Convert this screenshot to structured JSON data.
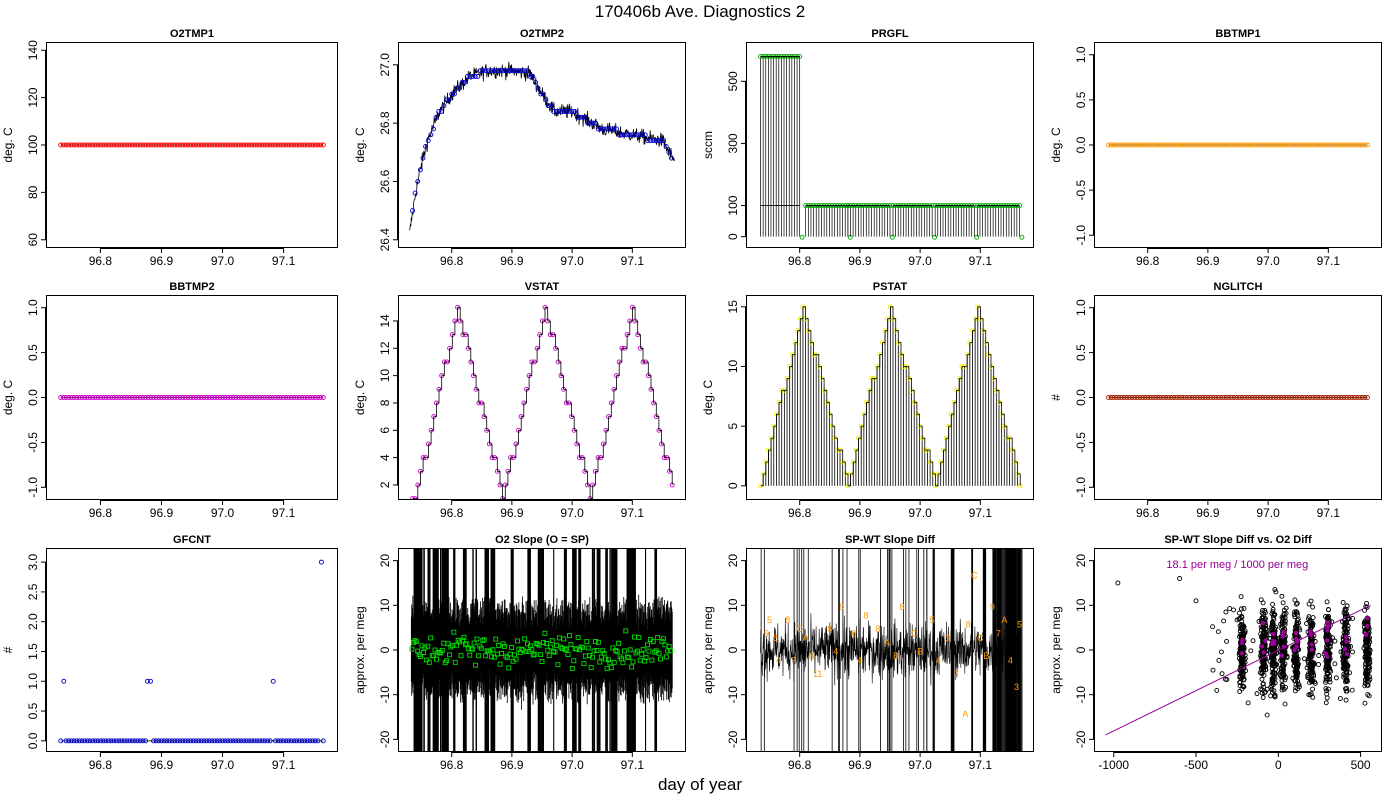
{
  "figure": {
    "title": "170406b   Ave. Diagnostics 2",
    "xlabel": "day of year"
  },
  "colors": {
    "red": "#ff0000",
    "blue": "#0000cc",
    "green": "#00aa00",
    "orange": "#ff9900",
    "purple": "#cc00cc",
    "yellow": "#eeee00",
    "brown": "#aa2200",
    "brightgreen": "#00dd00",
    "magenta": "#990099",
    "black": "#000000"
  },
  "chart_data": [
    {
      "name": "O2TMP1",
      "type": "scatter",
      "title": "O2TMP1",
      "ylabel": "deg. C",
      "xlim": [
        96.73,
        97.17
      ],
      "ylim": [
        60,
        140
      ],
      "xticks": [
        96.8,
        96.9,
        97.0,
        97.1
      ],
      "xtick_labels": [
        "96.8",
        "96.9",
        "97.0",
        "97.1"
      ],
      "yticks": [
        60,
        80,
        100,
        120,
        140
      ],
      "ytick_labels": [
        "60",
        "80",
        "100",
        "120",
        "140"
      ],
      "point_color": "red",
      "points": "constant",
      "value": 100
    },
    {
      "name": "O2TMP2",
      "type": "line",
      "title": "O2TMP2",
      "ylabel": "deg. C",
      "xlim": [
        96.73,
        97.17
      ],
      "ylim": [
        26.4,
        27.05
      ],
      "xticks": [
        96.8,
        96.9,
        97.0,
        97.1
      ],
      "xtick_labels": [
        "96.8",
        "96.9",
        "97.0",
        "97.1"
      ],
      "yticks": [
        26.4,
        26.6,
        26.8,
        27.0
      ],
      "ytick_labels": [
        "26.4",
        "26.6",
        "26.8",
        "27.0"
      ],
      "point_color": "blue",
      "curve_x": [
        96.73,
        96.74,
        96.75,
        96.76,
        96.78,
        96.8,
        96.83,
        96.86,
        96.9,
        96.93,
        96.95,
        96.97,
        97.0,
        97.05,
        97.1,
        97.15,
        97.17
      ],
      "curve_y": [
        26.42,
        26.56,
        26.66,
        26.74,
        26.84,
        26.9,
        26.96,
        26.98,
        26.98,
        26.97,
        26.9,
        26.84,
        26.84,
        26.78,
        26.76,
        26.74,
        26.67
      ]
    },
    {
      "name": "PRGFL",
      "type": "step",
      "title": "PRGFL",
      "ylabel": "sccm",
      "xlim": [
        96.73,
        97.17
      ],
      "ylim": [
        -10,
        600
      ],
      "xticks": [
        96.8,
        96.9,
        97.0,
        97.1
      ],
      "xtick_labels": [
        "96.8",
        "96.9",
        "97.0",
        "97.1"
      ],
      "yticks": [
        0,
        100,
        300,
        500
      ],
      "ytick_labels": [
        "0",
        "100",
        "300",
        "500"
      ],
      "point_color": "green",
      "segments": [
        {
          "x0": 96.735,
          "x1": 96.8,
          "value": 580
        },
        {
          "x0": 96.81,
          "x1": 96.88,
          "value": 100
        },
        {
          "x0": 96.88,
          "x1": 96.95,
          "value": 100
        },
        {
          "x0": 96.955,
          "x1": 97.02,
          "value": 100
        },
        {
          "x0": 97.025,
          "x1": 97.09,
          "value": 100
        },
        {
          "x0": 97.095,
          "x1": 97.165,
          "value": 100
        }
      ]
    },
    {
      "name": "BBTMP1",
      "type": "scatter",
      "title": "BBTMP1",
      "ylabel": "deg. C",
      "xlim": [
        96.73,
        97.17
      ],
      "ylim": [
        -1.05,
        1.05
      ],
      "xticks": [
        96.8,
        96.9,
        97.0,
        97.1
      ],
      "xtick_labels": [
        "96.8",
        "96.9",
        "97.0",
        "97.1"
      ],
      "yticks": [
        -1.0,
        -0.5,
        0.0,
        0.5,
        1.0
      ],
      "ytick_labels": [
        "-1.0",
        "-0.5",
        "0.0",
        "0.5",
        "1.0"
      ],
      "point_color": "orange",
      "points": "constant",
      "value": 0
    },
    {
      "name": "BBTMP2",
      "type": "scatter",
      "title": "BBTMP2",
      "ylabel": "deg. C",
      "xlim": [
        96.73,
        97.17
      ],
      "ylim": [
        -1.05,
        1.05
      ],
      "xticks": [
        96.8,
        96.9,
        97.0,
        97.1
      ],
      "xtick_labels": [
        "96.8",
        "96.9",
        "97.0",
        "97.1"
      ],
      "yticks": [
        -1.0,
        -0.5,
        0.0,
        0.5,
        1.0
      ],
      "ytick_labels": [
        "-1.0",
        "-0.5",
        "0.0",
        "0.5",
        "1.0"
      ],
      "point_color": "purple",
      "points": "constant",
      "value": 0
    },
    {
      "name": "VSTAT",
      "type": "step",
      "title": "VSTAT",
      "ylabel": "deg. C",
      "xlim": [
        96.73,
        97.17
      ],
      "ylim": [
        1.5,
        15.3
      ],
      "xticks": [
        96.8,
        96.9,
        97.0,
        97.1
      ],
      "xtick_labels": [
        "96.8",
        "96.9",
        "97.0",
        "97.1"
      ],
      "yticks": [
        2,
        4,
        6,
        8,
        10,
        12,
        14
      ],
      "ytick_labels": [
        "2",
        "4",
        "6",
        "8",
        "10",
        "12",
        "14"
      ],
      "point_color": "purple",
      "pattern": "triangle",
      "min": 1,
      "max": 15,
      "peaks": [
        96.81,
        96.955,
        97.1
      ],
      "troughs": [
        96.74,
        96.885,
        97.03,
        97.17
      ]
    },
    {
      "name": "PSTAT",
      "type": "bars",
      "title": "PSTAT",
      "ylabel": "deg. C",
      "xlim": [
        96.73,
        97.17
      ],
      "ylim": [
        -0.5,
        15.3
      ],
      "xticks": [
        96.8,
        96.9,
        97.0,
        97.1
      ],
      "xtick_labels": [
        "96.8",
        "96.9",
        "97.0",
        "97.1"
      ],
      "yticks": [
        0,
        5,
        10,
        15
      ],
      "ytick_labels": [
        "0",
        "5",
        "10",
        "15"
      ],
      "point_color": "yellow",
      "pattern": "triangle",
      "min": 0,
      "max": 15,
      "peaks": [
        96.805,
        96.95,
        97.095
      ],
      "troughs": [
        96.735,
        96.88,
        97.025,
        97.165
      ]
    },
    {
      "name": "NGLITCH",
      "type": "scatter",
      "title": "NGLITCH",
      "ylabel": "#",
      "xlim": [
        96.73,
        97.17
      ],
      "ylim": [
        -1.05,
        1.05
      ],
      "xticks": [
        96.8,
        96.9,
        97.0,
        97.1
      ],
      "xtick_labels": [
        "96.8",
        "96.9",
        "97.0",
        "97.1"
      ],
      "yticks": [
        -1.0,
        -0.5,
        0.0,
        0.5,
        1.0
      ],
      "ytick_labels": [
        "-1.0",
        "-0.5",
        "0.0",
        "0.5",
        "1.0"
      ],
      "point_color": "brown",
      "points": "constant",
      "value": 0
    },
    {
      "name": "GFCNT",
      "type": "scatter",
      "title": "GFCNT",
      "ylabel": "#",
      "xlim": [
        96.73,
        97.17
      ],
      "ylim": [
        -0.05,
        3.1
      ],
      "xticks": [
        96.8,
        96.9,
        97.0,
        97.1
      ],
      "xtick_labels": [
        "96.8",
        "96.9",
        "97.0",
        "97.1"
      ],
      "yticks": [
        0.0,
        0.5,
        1.0,
        1.5,
        2.0,
        2.5,
        3.0
      ],
      "ytick_labels": [
        "0.0",
        "0.5",
        "1.0",
        "1.5",
        "2.0",
        "2.5",
        "3.0"
      ],
      "point_color": "blue",
      "points": "constant",
      "value": 0,
      "outliers": [
        {
          "x": 96.74,
          "y": 1
        },
        {
          "x": 96.877,
          "y": 1
        },
        {
          "x": 96.882,
          "y": 1
        },
        {
          "x": 97.083,
          "y": 1
        },
        {
          "x": 97.162,
          "y": 3
        }
      ]
    },
    {
      "name": "O2Slope",
      "type": "scatter",
      "title": "O2 Slope (O = SP)",
      "ylabel": "approx. per meg",
      "xlim": [
        96.73,
        97.17
      ],
      "ylim": [
        -21,
        21
      ],
      "xticks": [
        96.8,
        96.9,
        97.0,
        97.1
      ],
      "xtick_labels": [
        "96.8",
        "96.9",
        "97.0",
        "97.1"
      ],
      "yticks": [
        -20,
        -10,
        0,
        10,
        20
      ],
      "ytick_labels": [
        "-20",
        "-10",
        "0",
        "10",
        "20"
      ],
      "point_color": "brightgreen",
      "noise": "high"
    },
    {
      "name": "SPWTDiff",
      "type": "line",
      "title": "SP-WT Slope Diff",
      "ylabel": "approx. per meg",
      "xlim": [
        96.73,
        97.17
      ],
      "ylim": [
        -21,
        21
      ],
      "xticks": [
        96.8,
        96.9,
        97.0,
        97.1
      ],
      "xtick_labels": [
        "96.8",
        "96.9",
        "97.0",
        "97.1"
      ],
      "yticks": [
        -20,
        -10,
        0,
        10,
        20
      ],
      "ytick_labels": [
        "-20",
        "-10",
        "0",
        "10",
        "20"
      ],
      "point_color": "orange",
      "annotations": [
        {
          "x": 96.745,
          "y": 3,
          "t": "9"
        },
        {
          "x": 96.75,
          "y": 6,
          "t": "5"
        },
        {
          "x": 96.76,
          "y": 2,
          "t": "8"
        },
        {
          "x": 96.765,
          "y": -3,
          "t": "4"
        },
        {
          "x": 96.78,
          "y": 6,
          "t": "8"
        },
        {
          "x": 96.79,
          "y": -3,
          "t": "7"
        },
        {
          "x": 96.8,
          "y": 4,
          "t": "C"
        },
        {
          "x": 96.81,
          "y": 2,
          "t": "A"
        },
        {
          "x": 96.82,
          "y": -2,
          "t": "B"
        },
        {
          "x": 96.83,
          "y": -6,
          "t": "11"
        },
        {
          "x": 96.85,
          "y": 4,
          "t": "8"
        },
        {
          "x": 96.86,
          "y": -1,
          "t": "4"
        },
        {
          "x": 96.87,
          "y": 9,
          "t": "9"
        },
        {
          "x": 96.89,
          "y": 3,
          "t": "6"
        },
        {
          "x": 96.9,
          "y": -3,
          "t": "4"
        },
        {
          "x": 96.91,
          "y": 7,
          "t": "8"
        },
        {
          "x": 96.93,
          "y": 4,
          "t": "8"
        },
        {
          "x": 96.945,
          "y": 1,
          "t": "A"
        },
        {
          "x": 96.96,
          "y": -2,
          "t": "B"
        },
        {
          "x": 96.97,
          "y": 9,
          "t": "8"
        },
        {
          "x": 96.99,
          "y": 3,
          "t": "C"
        },
        {
          "x": 97.0,
          "y": -1,
          "t": "B"
        },
        {
          "x": 97.02,
          "y": 6,
          "t": "5"
        },
        {
          "x": 97.03,
          "y": -3,
          "t": "4"
        },
        {
          "x": 97.045,
          "y": 2,
          "t": "3"
        },
        {
          "x": 97.06,
          "y": -6,
          "t": "7"
        },
        {
          "x": 97.075,
          "y": -15,
          "t": "A"
        },
        {
          "x": 97.08,
          "y": 5,
          "t": "8"
        },
        {
          "x": 97.09,
          "y": 16,
          "t": "C"
        },
        {
          "x": 97.1,
          "y": 2,
          "t": "C"
        },
        {
          "x": 97.11,
          "y": -2,
          "t": "B"
        },
        {
          "x": 97.12,
          "y": 9,
          "t": "9"
        },
        {
          "x": 97.13,
          "y": 3,
          "t": "7"
        },
        {
          "x": 97.14,
          "y": 6,
          "t": "A"
        },
        {
          "x": 97.15,
          "y": -3,
          "t": "4"
        },
        {
          "x": 97.16,
          "y": -9,
          "t": "3"
        },
        {
          "x": 97.165,
          "y": 5,
          "t": "5"
        }
      ]
    },
    {
      "name": "SPWTvsO2",
      "type": "scatter",
      "title": "SP-WT Slope Diff vs. O2 Diff",
      "ylabel": "approx. per meg",
      "xlim": [
        -1050,
        560
      ],
      "ylim": [
        -21,
        21
      ],
      "xticks": [
        -1000,
        -500,
        0,
        500
      ],
      "xtick_labels": [
        "-1000",
        "-500",
        "0",
        "500"
      ],
      "yticks": [
        -20,
        -10,
        0,
        10,
        20
      ],
      "ytick_labels": [
        "-20",
        "-10",
        "0",
        "10",
        "20"
      ],
      "point_color": "black",
      "highlight_color": "magenta",
      "annotation": "18.1 per meg / 1000 per meg",
      "clusters": [
        -220,
        -90,
        -30,
        30,
        110,
        200,
        300,
        410,
        540
      ]
    }
  ]
}
